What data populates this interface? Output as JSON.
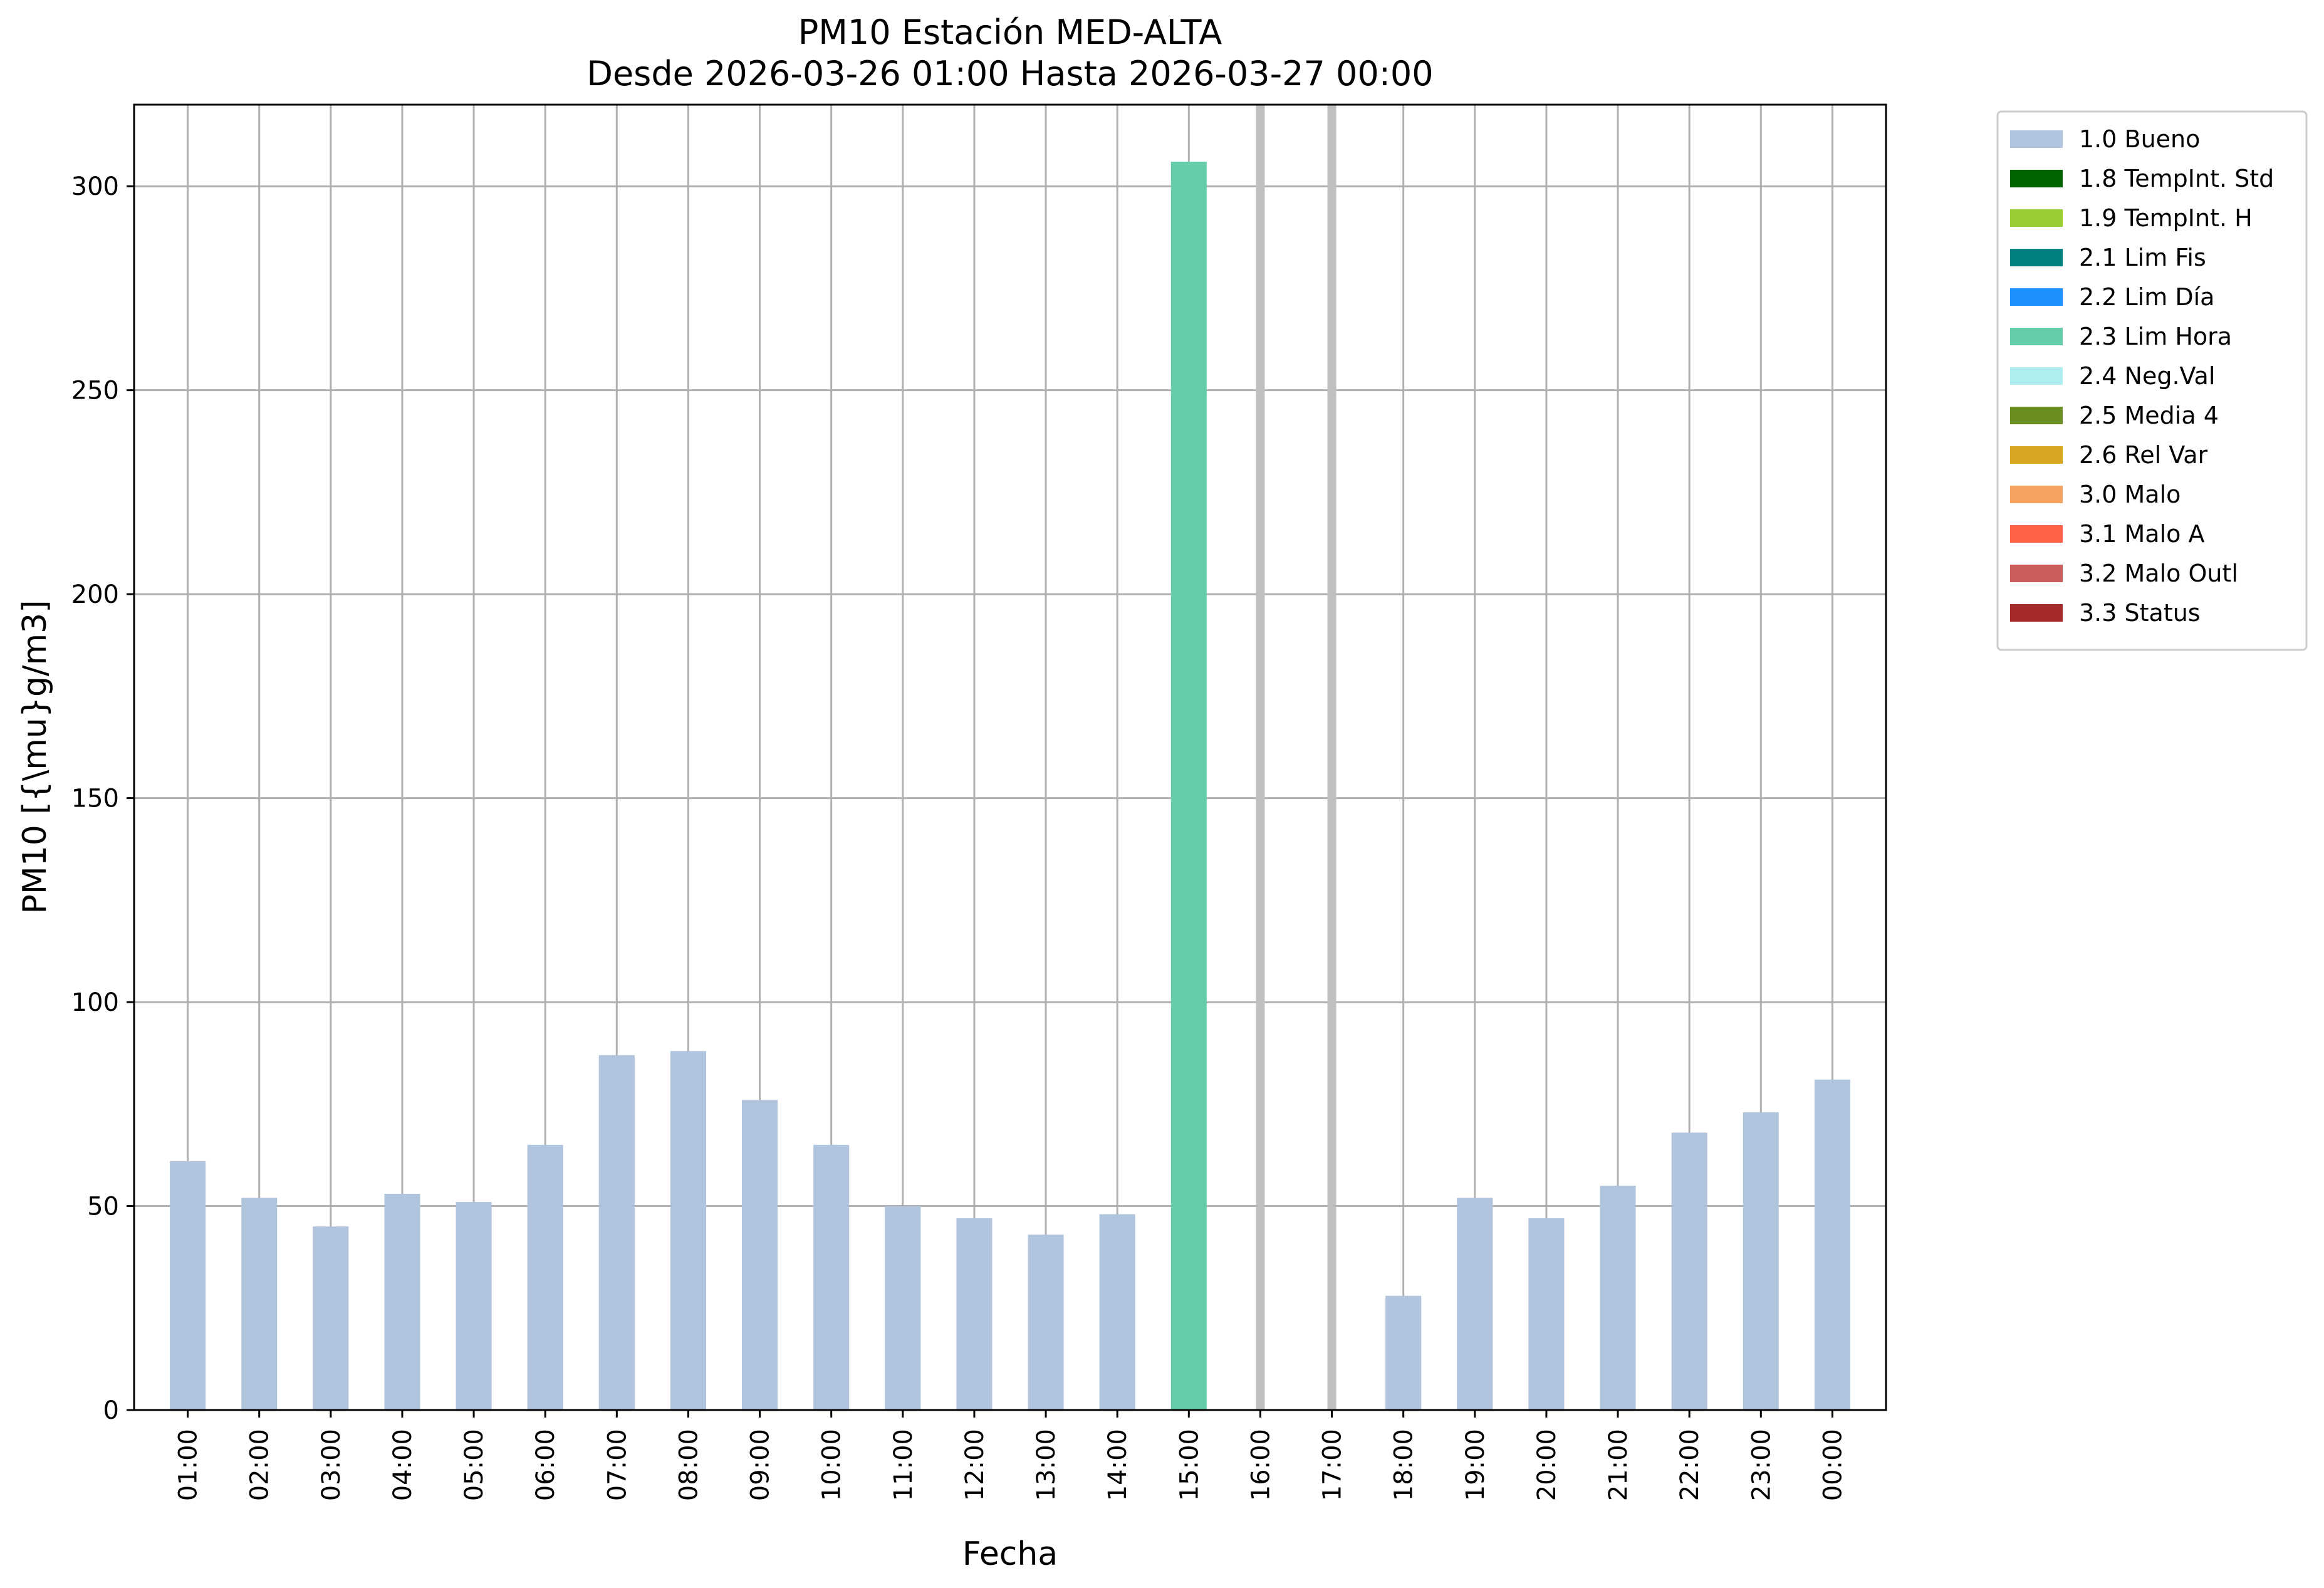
{
  "chart_data": {
    "type": "bar",
    "title": [
      "PM10 Estación MED-ALTA",
      "Desde 2026-03-26 01:00 Hasta 2026-03-27 00:00"
    ],
    "xlabel": "Fecha",
    "ylabel": "PM10 [{\\mu}g/m3]",
    "ylim": [
      0,
      320
    ],
    "yticks": [
      0,
      50,
      100,
      150,
      200,
      250,
      300
    ],
    "grid": true,
    "legend_position": "outside-top-right",
    "categories": [
      "01:00",
      "02:00",
      "03:00",
      "04:00",
      "05:00",
      "06:00",
      "07:00",
      "08:00",
      "09:00",
      "10:00",
      "11:00",
      "12:00",
      "13:00",
      "14:00",
      "15:00",
      "16:00",
      "17:00",
      "18:00",
      "19:00",
      "20:00",
      "21:00",
      "22:00",
      "23:00",
      "00:00"
    ],
    "values": [
      61,
      52,
      45,
      53,
      51,
      65,
      87,
      88,
      76,
      65,
      50,
      47,
      43,
      48,
      306,
      null,
      null,
      28,
      52,
      47,
      55,
      68,
      73,
      81
    ],
    "flags": [
      "1.0 Bueno",
      "1.0 Bueno",
      "1.0 Bueno",
      "1.0 Bueno",
      "1.0 Bueno",
      "1.0 Bueno",
      "1.0 Bueno",
      "1.0 Bueno",
      "1.0 Bueno",
      "1.0 Bueno",
      "1.0 Bueno",
      "1.0 Bueno",
      "1.0 Bueno",
      "1.0 Bueno",
      "2.3 Lim Hora",
      null,
      null,
      "1.0 Bueno",
      "1.0 Bueno",
      "1.0 Bueno",
      "1.0 Bueno",
      "1.0 Bueno",
      "1.0 Bueno",
      "1.0 Bueno"
    ],
    "missing_markers": [
      "16:00",
      "17:00"
    ],
    "legend": [
      {
        "name": "1.0 Bueno",
        "color": "#b0c4de"
      },
      {
        "name": "1.8 TempInt. Std",
        "color": "#006400"
      },
      {
        "name": "1.9 TempInt. H",
        "color": "#9acd32"
      },
      {
        "name": "2.1 Lim Fis",
        "color": "#008080"
      },
      {
        "name": "2.2 Lim Día",
        "color": "#1e90ff"
      },
      {
        "name": "2.3 Lim Hora",
        "color": "#66cdaa"
      },
      {
        "name": "2.4 Neg.Val",
        "color": "#afeeee"
      },
      {
        "name": "2.5 Media 4",
        "color": "#6b8e23"
      },
      {
        "name": "2.6 Rel Var",
        "color": "#daa520"
      },
      {
        "name": "3.0 Malo",
        "color": "#f4a460"
      },
      {
        "name": "3.1 Malo A",
        "color": "#ff6347"
      },
      {
        "name": "3.2 Malo Outl",
        "color": "#cd5c5c"
      },
      {
        "name": "3.3 Status",
        "color": "#a52a2a"
      }
    ],
    "missing_marker_color": "#c0c0c0",
    "grid_color": "#b0b0b0"
  }
}
